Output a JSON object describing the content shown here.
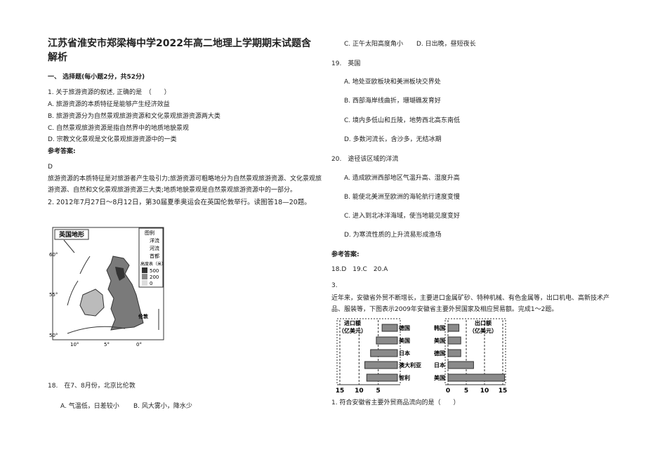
{
  "header": {
    "title_lines": [
      "江苏省淮安市郑梁梅中学2022年高二地理上学期期末试题含",
      "解析"
    ]
  },
  "section": "一、 选择题(每小题2分，共52分)",
  "q1": {
    "stem": "1. 关于旅游资源的叙述, 正确的是　（　　）",
    "options": [
      "A. 旅游资源的本质特征是能够产生经济效益",
      "B. 旅游资源分为自然景观旅游资源和文化景观旅游资源两大类",
      "C. 自然景观旅游资源是指自然界中的地质地貌景观",
      "D. 宗教文化景观是文化景观旅游资源中的一类"
    ],
    "answer_label": "参考答案:",
    "answer": "D",
    "explanation_lines": [
      "旅游资源的本质特征是对旅游者产生吸引力;旅游资源可粗略地分为自然景观旅游资源、文化景观旅",
      "游资源、自然和文化景观旅游资源三大类;地质地貌景观是自然景观旅游资源中的一部分。"
    ]
  },
  "q2": "2. 2012年7月27日～8月12日，第30届夏季奥运会在英国伦敦举行。读图答18—20题。",
  "map": {
    "title": "英国地形",
    "legend_title": "图例",
    "legend": [
      "洋流",
      "河流",
      "首都",
      "高度表（米）",
      "500",
      "200",
      "0"
    ],
    "lat": [
      "60°",
      "55°",
      "50°"
    ],
    "lon": [
      "10°",
      "5°",
      "0°"
    ],
    "city": "伦敦"
  },
  "q18": {
    "stem": "18.　在7、8月份，北京比伦敦",
    "options": [
      "A. 气温低，日差较小",
      "B. 风大雾小，降水少",
      "C. 正午太阳高度角小",
      "D. 日出晚，昼短夜长"
    ]
  },
  "q19": {
    "stem": "19.　英国",
    "options": [
      "A. 地处亚欧板块和美洲板块交界处",
      "B. 西部海岸线曲折，珊瑚礁发育好",
      "C. 境内多低山和丘陵，地势西北高东南低",
      "D. 多数河流长，含沙多，无结冰期"
    ]
  },
  "q20": {
    "stem": "20.　途径该区域的洋流",
    "options": [
      "A. 造成欧洲西部地区气温升高、湿度升高",
      "B. 能使北美洲至欧洲的海轮航行速度变慢",
      "C. 进入到北冰洋海域，使当地能见度变好",
      "D. 为寒流性质的上升流易形成渔场"
    ]
  },
  "answer2": {
    "label": "参考答案:",
    "text": "18.D　19.C　20.A"
  },
  "q3": {
    "number": "3.",
    "text_lines": [
      "近年来，安徽省外贸不断增长，主要进口金属矿砂、特种机械、有色金属等，出口机电、高新技术产",
      "品、服装等，下图表示2009年安徽省主要外贸国家及相应贸易额。完成1～2题。"
    ],
    "question": "1. 符合安徽省主要外贸商品流向的是（　　）"
  },
  "figure_trade": {
    "import": {
      "type": "bar",
      "title_lines": [
        "进口额",
        "（亿美元）"
      ],
      "categories": [
        "德国",
        "美国",
        "日本",
        "澳大利亚",
        "智利"
      ],
      "values": [
        4,
        5.5,
        7,
        8.5,
        8
      ],
      "color": "#8a8a8a",
      "xlim": [
        15,
        0
      ],
      "xticks": [
        15,
        10,
        5
      ],
      "grid": true
    },
    "export": {
      "type": "bar",
      "title_lines": [
        "出口额",
        "（亿美元）"
      ],
      "categories": [
        "韩国",
        "美国",
        "德国",
        "日本",
        "美国"
      ],
      "values": [
        3,
        3.5,
        3.5,
        7,
        15.5
      ],
      "color": "#8a8a8a",
      "xlim": [
        0,
        15
      ],
      "xticks": [
        0,
        5,
        10,
        15
      ],
      "grid": true
    }
  }
}
